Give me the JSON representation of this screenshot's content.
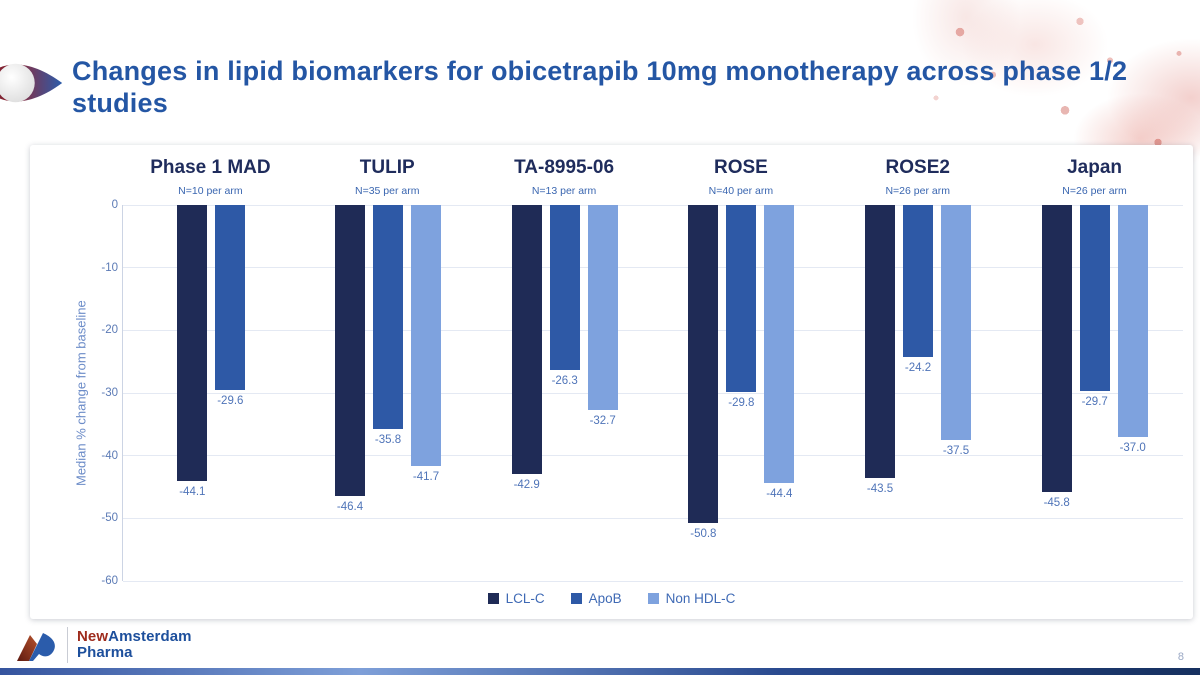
{
  "slide": {
    "title": "Changes in lipid biomarkers for obicetrapib 10mg monotherapy across phase 1/2 studies",
    "page_number": "8"
  },
  "logo": {
    "word1": "New",
    "word2": "Amsterdam",
    "word3": "Pharma"
  },
  "colors": {
    "title_blue": "#2456a4",
    "header_navy": "#1f2c5c",
    "label_blue": "#4f74b8",
    "lcl_c": "#1f2b56",
    "apob": "#2e59a6",
    "non_hdl_c": "#7ea2de"
  },
  "chart_data": {
    "type": "bar",
    "categories": [
      "Phase 1 MAD",
      "TULIP",
      "TA-8995-06",
      "ROSE",
      "ROSE2",
      "Japan"
    ],
    "subtitles": [
      "N=10 per arm",
      "N=35 per arm",
      "N=13 per arm",
      "N=40 per arm",
      "N=26 per arm",
      "N=26 per arm"
    ],
    "series": [
      {
        "name": "LCL-C",
        "color": "#1f2b56",
        "values": [
          -44.1,
          -46.4,
          -42.9,
          -50.8,
          -43.5,
          -45.8
        ]
      },
      {
        "name": "ApoB",
        "color": "#2e59a6",
        "values": [
          -29.6,
          -35.8,
          -26.3,
          -29.8,
          -24.2,
          -29.7
        ]
      },
      {
        "name": "Non HDL-C",
        "color": "#7ea2de",
        "values": [
          null,
          -41.7,
          -32.7,
          -44.4,
          -37.5,
          -37.0
        ]
      }
    ],
    "ylabel": "Median % change from baseline",
    "ylim": [
      0,
      -60
    ],
    "yticks": [
      0,
      -10,
      -20,
      -30,
      -40,
      -50,
      -60
    ],
    "grid": true,
    "legend_position": "bottom"
  }
}
